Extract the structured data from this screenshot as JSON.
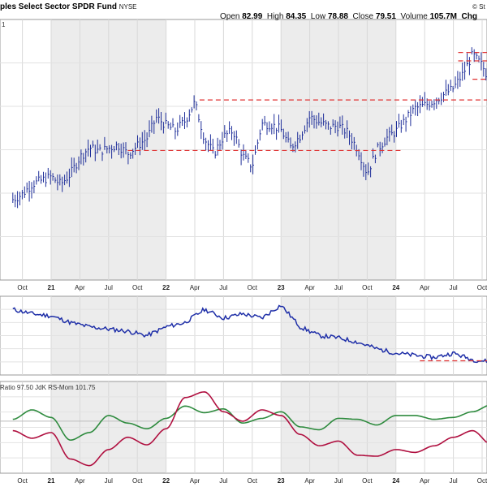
{
  "header": {
    "title": "ples Select Sector SPDR Fund",
    "exchange": "NYSE",
    "brand": "© St",
    "open_label": "Open",
    "open_value": "82.99",
    "high_label": "High",
    "high_value": "84.35",
    "low_label": "Low",
    "low_value": "78.88",
    "close_label": "Close",
    "close_value": "79.51",
    "volume_label": "Volume",
    "volume_value": "105.7M",
    "chg_label": "Chg"
  },
  "price_panel_label": "1",
  "rrg_panel_label": "Ratio 97.50  JdK RS-Mom 101.75",
  "colors": {
    "price": "#1f2f9a",
    "ratio_line": "#1f2fa8",
    "rs_ratio": "#b01040",
    "rs_mom": "#2e8b3e",
    "support": "#e03030",
    "shade": "#ececec"
  },
  "x_axis_labels": [
    "Oct",
    "21",
    "Apr",
    "Jul",
    "Oct",
    "22",
    "Apr",
    "Jul",
    "Oct",
    "23",
    "Apr",
    "Jul",
    "Oct",
    "24",
    "Apr",
    "Jul",
    "Oct"
  ],
  "chart_data": [
    {
      "type": "bar",
      "panel": "price",
      "x": [
        "2020-09",
        "2020-10",
        "2020-11",
        "2020-12",
        "2021-01",
        "2021-02",
        "2021-03",
        "2021-04",
        "2021-05",
        "2021-06",
        "2021-07",
        "2021-08",
        "2021-09",
        "2021-10",
        "2021-11",
        "2021-12",
        "2022-01",
        "2022-02",
        "2022-03",
        "2022-04",
        "2022-05",
        "2022-06",
        "2022-07",
        "2022-08",
        "2022-09",
        "2022-10",
        "2022-11",
        "2022-12",
        "2023-01",
        "2023-02",
        "2023-03",
        "2023-04",
        "2023-05",
        "2023-06",
        "2023-07",
        "2023-08",
        "2023-09",
        "2023-10",
        "2023-11",
        "2023-12",
        "2024-01",
        "2024-02",
        "2024-03",
        "2024-04",
        "2024-05",
        "2024-06",
        "2024-07",
        "2024-08",
        "2024-09",
        "2024-10",
        "2024-11"
      ],
      "values": [
        64.5,
        65.2,
        66.5,
        67.0,
        67.5,
        66.5,
        67.8,
        70.0,
        71.3,
        70.8,
        71.2,
        71.6,
        70.5,
        71.5,
        72.5,
        75.2,
        74.2,
        73.5,
        74.8,
        77.2,
        72.5,
        70.5,
        72.7,
        73.5,
        70.2,
        68.8,
        74.4,
        74.3,
        73.6,
        71.3,
        72.8,
        75.3,
        74.6,
        74.0,
        74.1,
        73.2,
        71.1,
        67.9,
        70.9,
        72.5,
        73.4,
        74.9,
        76.4,
        76.8,
        77.4,
        78.2,
        79.0,
        80.9,
        83.4,
        82.0,
        79.5
      ],
      "support_levels": [
        70.9,
        77.5,
        80.2,
        82.6,
        83.7
      ],
      "panel_label": "1"
    },
    {
      "type": "line",
      "panel": "relative",
      "x": [
        "2020-09",
        "2020-11",
        "2021-01",
        "2021-03",
        "2021-05",
        "2021-07",
        "2021-09",
        "2021-11",
        "2022-01",
        "2022-03",
        "2022-05",
        "2022-07",
        "2022-09",
        "2022-11",
        "2023-01",
        "2023-03",
        "2023-05",
        "2023-07",
        "2023-09",
        "2023-11",
        "2024-01",
        "2024-03",
        "2024-05",
        "2024-07",
        "2024-09",
        "2024-11"
      ],
      "values": [
        60,
        58,
        57,
        54,
        52,
        51,
        50,
        48,
        52,
        54,
        60,
        56,
        58,
        56,
        62,
        52,
        48,
        47,
        45,
        42,
        40,
        39,
        38,
        40,
        37,
        36
      ]
    },
    {
      "type": "line",
      "panel": "rrg",
      "x": [
        "2020-09",
        "2020-11",
        "2021-01",
        "2021-03",
        "2021-05",
        "2021-07",
        "2021-09",
        "2021-11",
        "2022-01",
        "2022-03",
        "2022-05",
        "2022-07",
        "2022-09",
        "2022-11",
        "2023-01",
        "2023-03",
        "2023-05",
        "2023-07",
        "2023-09",
        "2023-11",
        "2024-01",
        "2024-03",
        "2024-05",
        "2024-07",
        "2024-09",
        "2024-11"
      ],
      "series": [
        {
          "name": "Ratio",
          "values": [
            99.0,
            98.2,
            98.8,
            96.0,
            95.3,
            97.0,
            98.3,
            97.5,
            99.2,
            102.5,
            103.1,
            101.0,
            100.0,
            101.2,
            100.6,
            98.6,
            97.4,
            97.9,
            96.4,
            96.3,
            97.0,
            96.7,
            97.4,
            98.3,
            99.0,
            97.5
          ]
        },
        {
          "name": "JdK RS-Mom",
          "values": [
            100.2,
            101.2,
            100.4,
            98.0,
            98.8,
            100.6,
            99.8,
            99.2,
            100.3,
            101.6,
            100.9,
            101.3,
            99.8,
            100.3,
            101.0,
            99.4,
            99.1,
            100.3,
            100.2,
            99.6,
            100.6,
            100.6,
            100.2,
            100.4,
            101.0,
            101.75
          ]
        }
      ]
    }
  ]
}
